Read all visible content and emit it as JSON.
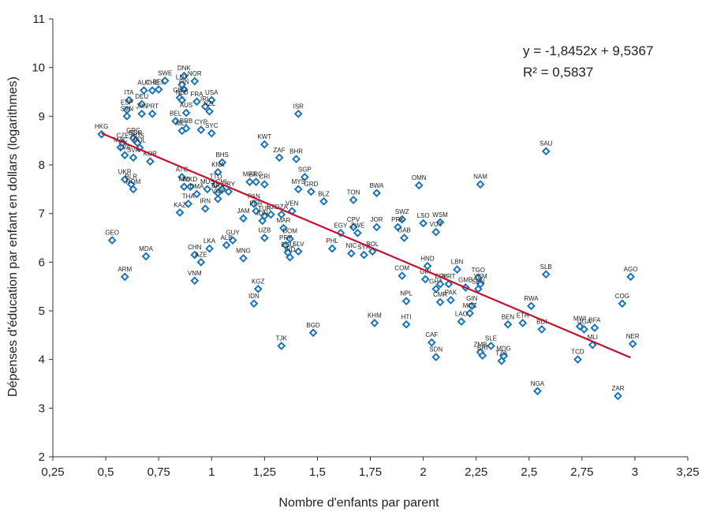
{
  "chart_data": {
    "type": "scatter",
    "title": "",
    "xlabel": "Nombre d'enfants par parent",
    "ylabel": "Dépenses d'éducation par enfant en dollars (logarithmes)",
    "xlim": [
      0.25,
      3.25
    ],
    "ylim": [
      2,
      11
    ],
    "x_ticks": [
      "0,25",
      "0,5",
      "0,75",
      "1",
      "1,25",
      "1,5",
      "1,75",
      "2",
      "2,25",
      "2,5",
      "2,75",
      "3",
      "3,25"
    ],
    "y_ticks": [
      "2",
      "3",
      "4",
      "5",
      "6",
      "7",
      "8",
      "9",
      "10",
      "11"
    ],
    "grid": false,
    "marker_color": "#1c75bc",
    "trend_color": "#c8102e",
    "trendline": {
      "slope": -1.8452,
      "intercept": 9.5367,
      "x_range": [
        0.48,
        2.98
      ]
    },
    "equation": "y = -1,8452x + 9,5367",
    "r2": "R² = 0,5837",
    "points": [
      {
        "label": "HKG",
        "x": 0.48,
        "y": 8.63
      },
      {
        "label": "CZE",
        "x": 0.58,
        "y": 8.45
      },
      {
        "label": "MAC",
        "x": 0.57,
        "y": 8.36
      },
      {
        "label": "LVA",
        "x": 0.59,
        "y": 8.2
      },
      {
        "label": "GRC",
        "x": 0.63,
        "y": 8.55
      },
      {
        "label": "BGR",
        "x": 0.64,
        "y": 8.5
      },
      {
        "label": "RUS",
        "x": 0.65,
        "y": 8.45
      },
      {
        "label": "POL",
        "x": 0.66,
        "y": 8.35
      },
      {
        "label": "SVK",
        "x": 0.63,
        "y": 8.15
      },
      {
        "label": "KOR",
        "x": 0.71,
        "y": 8.07
      },
      {
        "label": "UKR",
        "x": 0.59,
        "y": 7.7
      },
      {
        "label": "BLR",
        "x": 0.62,
        "y": 7.6
      },
      {
        "label": "ROM",
        "x": 0.63,
        "y": 7.5
      },
      {
        "label": "GEO",
        "x": 0.53,
        "y": 6.45
      },
      {
        "label": "ARM",
        "x": 0.59,
        "y": 5.7
      },
      {
        "label": "MDA",
        "x": 0.69,
        "y": 6.12
      },
      {
        "label": "SWE",
        "x": 0.78,
        "y": 9.73
      },
      {
        "label": "AUT",
        "x": 0.68,
        "y": 9.53
      },
      {
        "label": "CHE",
        "x": 0.72,
        "y": 9.53
      },
      {
        "label": "BEL",
        "x": 0.75,
        "y": 9.55
      },
      {
        "label": "ITA",
        "x": 0.61,
        "y": 9.33
      },
      {
        "label": "DEU",
        "x": 0.67,
        "y": 9.25
      },
      {
        "label": "ESP",
        "x": 0.6,
        "y": 9.13
      },
      {
        "label": "SVN",
        "x": 0.6,
        "y": 9.0
      },
      {
        "label": "JPN",
        "x": 0.67,
        "y": 9.05
      },
      {
        "label": "PRT",
        "x": 0.72,
        "y": 9.05
      },
      {
        "label": "DNK",
        "x": 0.87,
        "y": 9.83
      },
      {
        "label": "LUX",
        "x": 0.86,
        "y": 9.65
      },
      {
        "label": "NOR",
        "x": 0.92,
        "y": 9.72
      },
      {
        "label": "FIN",
        "x": 0.87,
        "y": 9.55
      },
      {
        "label": "GBR",
        "x": 0.85,
        "y": 9.38
      },
      {
        "label": "NLD",
        "x": 0.86,
        "y": 9.33
      },
      {
        "label": "FRA",
        "x": 0.93,
        "y": 9.3
      },
      {
        "label": "IRL",
        "x": 0.97,
        "y": 9.2
      },
      {
        "label": "USA",
        "x": 1.0,
        "y": 9.33
      },
      {
        "label": "NZL",
        "x": 0.99,
        "y": 9.1
      },
      {
        "label": "AUS",
        "x": 0.88,
        "y": 9.07
      },
      {
        "label": "BEL",
        "x": 0.83,
        "y": 8.9
      },
      {
        "label": "BRB",
        "x": 0.88,
        "y": 8.75
      },
      {
        "label": "MLT",
        "x": 0.86,
        "y": 8.7
      },
      {
        "label": "CYP",
        "x": 0.95,
        "y": 8.72
      },
      {
        "label": "SYC",
        "x": 1.0,
        "y": 8.65
      },
      {
        "label": "ISR",
        "x": 1.41,
        "y": 9.05
      },
      {
        "label": "KWT",
        "x": 1.25,
        "y": 8.42
      },
      {
        "label": "ZAF",
        "x": 1.32,
        "y": 8.15
      },
      {
        "label": "BHR",
        "x": 1.4,
        "y": 8.12
      },
      {
        "label": "BHS",
        "x": 1.05,
        "y": 8.05
      },
      {
        "label": "KNA",
        "x": 1.03,
        "y": 7.85
      },
      {
        "label": "ATG",
        "x": 0.86,
        "y": 7.75
      },
      {
        "label": "TTO",
        "x": 1.02,
        "y": 7.6
      },
      {
        "label": "CHL",
        "x": 1.05,
        "y": 7.5
      },
      {
        "label": "MUS",
        "x": 0.98,
        "y": 7.5
      },
      {
        "label": "TTO",
        "x": 0.87,
        "y": 7.55
      },
      {
        "label": "MKD",
        "x": 0.9,
        "y": 7.55
      },
      {
        "label": "DMA",
        "x": 0.93,
        "y": 7.4
      },
      {
        "label": "BRA",
        "x": 1.03,
        "y": 7.42
      },
      {
        "label": "URY",
        "x": 1.08,
        "y": 7.45
      },
      {
        "label": "VCT",
        "x": 1.03,
        "y": 7.3
      },
      {
        "label": "THA",
        "x": 0.89,
        "y": 7.2
      },
      {
        "label": "IRN",
        "x": 0.97,
        "y": 7.1
      },
      {
        "label": "KAZ",
        "x": 0.85,
        "y": 7.02
      },
      {
        "label": "MEX",
        "x": 1.18,
        "y": 7.65
      },
      {
        "label": "ARG",
        "x": 1.21,
        "y": 7.65
      },
      {
        "label": "CRI",
        "x": 1.25,
        "y": 7.6
      },
      {
        "label": "SGP",
        "x": 1.44,
        "y": 7.75
      },
      {
        "label": "MYS",
        "x": 1.41,
        "y": 7.5
      },
      {
        "label": "GRD",
        "x": 1.47,
        "y": 7.45
      },
      {
        "label": "BLZ",
        "x": 1.53,
        "y": 7.25
      },
      {
        "label": "PAN",
        "x": 1.2,
        "y": 7.2
      },
      {
        "label": "JAM",
        "x": 1.15,
        "y": 6.9
      },
      {
        "label": "PER",
        "x": 1.21,
        "y": 7.05
      },
      {
        "label": "TUR",
        "x": 1.25,
        "y": 6.95
      },
      {
        "label": "FJI",
        "x": 1.28,
        "y": 6.98
      },
      {
        "label": "DZA",
        "x": 1.33,
        "y": 6.98
      },
      {
        "label": "VEN",
        "x": 1.38,
        "y": 7.05
      },
      {
        "label": "IDN",
        "x": 1.24,
        "y": 6.85
      },
      {
        "label": "MAR",
        "x": 1.34,
        "y": 6.7
      },
      {
        "label": "UZB",
        "x": 1.25,
        "y": 6.5
      },
      {
        "label": "DOM",
        "x": 1.37,
        "y": 6.48
      },
      {
        "label": "PRY",
        "x": 1.35,
        "y": 6.35
      },
      {
        "label": "ECU",
        "x": 1.36,
        "y": 6.2
      },
      {
        "label": "SLV",
        "x": 1.41,
        "y": 6.22
      },
      {
        "label": "IND",
        "x": 1.37,
        "y": 6.1
      },
      {
        "label": "GUY",
        "x": 1.1,
        "y": 6.45
      },
      {
        "label": "ALB",
        "x": 1.07,
        "y": 6.35
      },
      {
        "label": "LKA",
        "x": 0.99,
        "y": 6.28
      },
      {
        "label": "CHN",
        "x": 0.92,
        "y": 6.15
      },
      {
        "label": "AZE",
        "x": 0.95,
        "y": 6.0
      },
      {
        "label": "MNG",
        "x": 1.15,
        "y": 6.08
      },
      {
        "label": "VNM",
        "x": 0.92,
        "y": 5.62
      },
      {
        "label": "KGZ",
        "x": 1.22,
        "y": 5.45
      },
      {
        "label": "IDN",
        "x": 1.2,
        "y": 5.15
      },
      {
        "label": "TJK",
        "x": 1.33,
        "y": 4.28
      },
      {
        "label": "BGD",
        "x": 1.48,
        "y": 4.55
      },
      {
        "label": "TON",
        "x": 1.67,
        "y": 7.28
      },
      {
        "label": "BWA",
        "x": 1.78,
        "y": 7.42
      },
      {
        "label": "OMN",
        "x": 1.98,
        "y": 7.58
      },
      {
        "label": "NAM",
        "x": 2.27,
        "y": 7.6
      },
      {
        "label": "SAU",
        "x": 2.58,
        "y": 8.28
      },
      {
        "label": "EGY",
        "x": 1.61,
        "y": 6.6
      },
      {
        "label": "CPV",
        "x": 1.67,
        "y": 6.72
      },
      {
        "label": "ZWE",
        "x": 1.69,
        "y": 6.6
      },
      {
        "label": "JOR",
        "x": 1.78,
        "y": 6.72
      },
      {
        "label": "SWZ",
        "x": 1.9,
        "y": 6.88
      },
      {
        "label": "PRK",
        "x": 1.88,
        "y": 6.72
      },
      {
        "label": "GAB",
        "x": 1.91,
        "y": 6.5
      },
      {
        "label": "LSO",
        "x": 2.0,
        "y": 6.8
      },
      {
        "label": "WSM",
        "x": 2.08,
        "y": 6.82
      },
      {
        "label": "VUT",
        "x": 2.06,
        "y": 6.62
      },
      {
        "label": "PHL",
        "x": 1.57,
        "y": 6.28
      },
      {
        "label": "NIC",
        "x": 1.66,
        "y": 6.18
      },
      {
        "label": "SYR",
        "x": 1.72,
        "y": 6.15
      },
      {
        "label": "BOL",
        "x": 1.76,
        "y": 6.22
      },
      {
        "label": "HND",
        "x": 2.02,
        "y": 5.92
      },
      {
        "label": "COM",
        "x": 1.9,
        "y": 5.72
      },
      {
        "label": "GIN",
        "x": 2.01,
        "y": 5.65
      },
      {
        "label": "LBN",
        "x": 2.16,
        "y": 5.85
      },
      {
        "label": "TGO",
        "x": 2.26,
        "y": 5.68
      },
      {
        "label": "YEM",
        "x": 2.27,
        "y": 5.55
      },
      {
        "label": "SEN",
        "x": 2.26,
        "y": 5.45
      },
      {
        "label": "GHA",
        "x": 2.06,
        "y": 5.45
      },
      {
        "label": "ERI",
        "x": 2.08,
        "y": 5.55
      },
      {
        "label": "MRT",
        "x": 2.12,
        "y": 5.55
      },
      {
        "label": "GMB",
        "x": 2.2,
        "y": 5.48
      },
      {
        "label": "CMR",
        "x": 2.08,
        "y": 5.18
      },
      {
        "label": "PAK",
        "x": 2.13,
        "y": 5.22
      },
      {
        "label": "SLB",
        "x": 2.58,
        "y": 5.75
      },
      {
        "label": "AGO",
        "x": 2.98,
        "y": 5.7
      },
      {
        "label": "NPL",
        "x": 1.92,
        "y": 5.2
      },
      {
        "label": "GIN",
        "x": 2.23,
        "y": 5.1
      },
      {
        "label": "MOZ",
        "x": 2.22,
        "y": 4.95
      },
      {
        "label": "LAO",
        "x": 2.18,
        "y": 4.78
      },
      {
        "label": "RWA",
        "x": 2.51,
        "y": 5.1
      },
      {
        "label": "COG",
        "x": 2.94,
        "y": 5.15
      },
      {
        "label": "KHM",
        "x": 1.77,
        "y": 4.75
      },
      {
        "label": "HTI",
        "x": 1.92,
        "y": 4.72
      },
      {
        "label": "BEN",
        "x": 2.4,
        "y": 4.72
      },
      {
        "label": "ETH",
        "x": 2.47,
        "y": 4.75
      },
      {
        "label": "BDI",
        "x": 2.56,
        "y": 4.62
      },
      {
        "label": "MWI",
        "x": 2.74,
        "y": 4.68
      },
      {
        "label": "UGA",
        "x": 2.76,
        "y": 4.62
      },
      {
        "label": "BFA",
        "x": 2.81,
        "y": 4.65
      },
      {
        "label": "MLI",
        "x": 2.8,
        "y": 4.3
      },
      {
        "label": "NER",
        "x": 2.99,
        "y": 4.32
      },
      {
        "label": "CAF",
        "x": 2.04,
        "y": 4.35
      },
      {
        "label": "SDN",
        "x": 2.06,
        "y": 4.05
      },
      {
        "label": "SLE",
        "x": 2.32,
        "y": 4.28
      },
      {
        "label": "ZMB",
        "x": 2.27,
        "y": 4.15
      },
      {
        "label": "ERI",
        "x": 2.28,
        "y": 4.08
      },
      {
        "label": "MDG",
        "x": 2.38,
        "y": 4.07
      },
      {
        "label": "TZA",
        "x": 2.37,
        "y": 3.97
      },
      {
        "label": "TCD",
        "x": 2.73,
        "y": 4.0
      },
      {
        "label": "NGA",
        "x": 2.54,
        "y": 3.35
      },
      {
        "label": "ZAR",
        "x": 2.92,
        "y": 3.25
      }
    ]
  }
}
